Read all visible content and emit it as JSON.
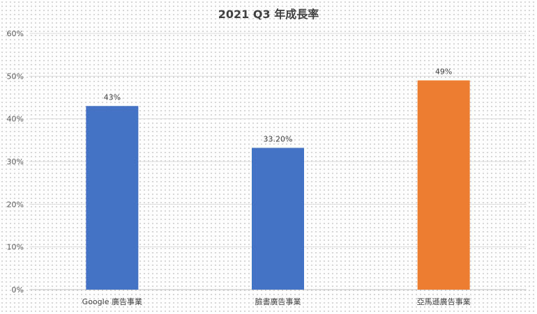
{
  "chart_data": {
    "type": "bar",
    "title": "2021 Q3 年成長率",
    "categories": [
      "Google 廣告事業",
      "臉書廣告事業",
      "亞馬遜廣告事業"
    ],
    "values": [
      43,
      33.2,
      49
    ],
    "value_labels": [
      "43%",
      "33.20%",
      "49%"
    ],
    "bar_colors": [
      "#4472c4",
      "#4472c4",
      "#ed7d31"
    ],
    "ylim": [
      0,
      60
    ],
    "y_ticks": [
      0,
      10,
      20,
      30,
      40,
      50,
      60
    ],
    "y_tick_labels": [
      "0%",
      "10%",
      "20%",
      "30%",
      "40%",
      "50%",
      "60%"
    ],
    "grid": true,
    "legend": "none",
    "xlabel": "",
    "ylabel": ""
  }
}
